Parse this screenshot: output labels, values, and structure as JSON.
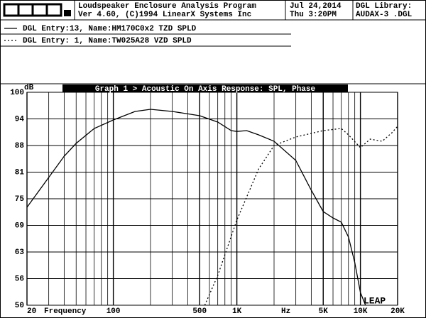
{
  "header": {
    "program": "Loudspeaker Enclosure Analysis Program",
    "version": "Ver 4.60, (C)1994 LinearX Systems Inc",
    "date": "Jul 24,2014",
    "time": "Thu  3:20PM",
    "library_label": "DGL Library:",
    "library": "AUDAX-3 .DGL"
  },
  "chart_data": {
    "type": "line",
    "title": "Graph 1 > Acoustic On Axis Response: SPL, Phase",
    "ylabel": "dB",
    "xlabel": "Frequency",
    "x_unit": "Hz",
    "annotation": "LEAP",
    "log_x": true,
    "xlim": [
      20,
      20000
    ],
    "ylim": [
      50,
      100
    ],
    "xticks": [
      20,
      100,
      500,
      {
        "value": 1000,
        "label": "1K"
      },
      {
        "value": 5000,
        "label": "5K"
      },
      {
        "value": 10000,
        "label": "10K"
      },
      {
        "value": 20000,
        "label": "20K"
      }
    ],
    "xminor": [
      30,
      40,
      50,
      60,
      70,
      80,
      90,
      200,
      300,
      400,
      600,
      700,
      800,
      900,
      2000,
      3000,
      4000,
      6000,
      7000,
      8000,
      9000
    ],
    "yticks": [
      50,
      {
        "value": 56.25,
        "label": "56"
      },
      {
        "value": 62.5,
        "label": "63"
      },
      {
        "value": 68.75,
        "label": "69"
      },
      75,
      {
        "value": 81.25,
        "label": "81"
      },
      {
        "value": 87.5,
        "label": "88"
      },
      {
        "value": 93.75,
        "label": "94"
      },
      100
    ],
    "grid": true,
    "series": [
      {
        "name": "DGL Entry:13, Name:HM170C0x2 TZD SPLD",
        "color": "#000000",
        "dash": "solid",
        "x": [
          20,
          30,
          40,
          50,
          70,
          100,
          150,
          200,
          300,
          500,
          700,
          900,
          1000,
          1200,
          1500,
          2000,
          3000,
          4000,
          5000,
          6000,
          7000,
          8000,
          9000,
          10000,
          11000
        ],
        "values": [
          73,
          80,
          85,
          88,
          91.5,
          93.5,
          95.5,
          96,
          95.5,
          94.5,
          93,
          91,
          90.8,
          91,
          90,
          88.5,
          84,
          77,
          72,
          70.5,
          69.5,
          66,
          60,
          53,
          50
        ]
      },
      {
        "name": "DGL Entry: 1, Name:TW025A28 VZD SPLD",
        "color": "#000000",
        "dash": "dotted",
        "x": [
          550,
          700,
          1000,
          1500,
          2000,
          3000,
          5000,
          7000,
          8000,
          10000,
          12000,
          15000,
          18000,
          20000
        ],
        "values": [
          50,
          57,
          70,
          82,
          87.5,
          89.5,
          91,
          91.5,
          90,
          87,
          89,
          88.5,
          90.5,
          92
        ]
      }
    ]
  }
}
